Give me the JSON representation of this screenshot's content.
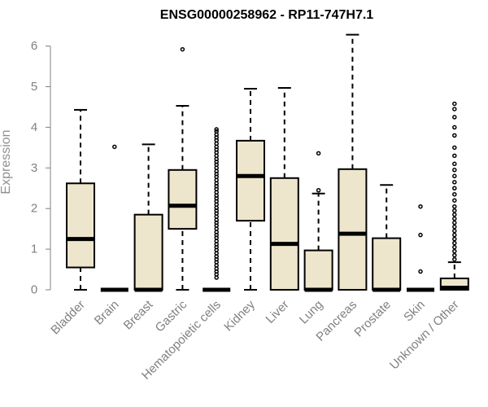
{
  "chart_data": {
    "type": "boxplot",
    "title": "ENSG00000258962 - RP11-747H7.1",
    "xlabel": "",
    "ylabel": "Expression",
    "ylim": [
      0,
      6.3
    ],
    "yticks": [
      0,
      1,
      2,
      3,
      4,
      5,
      6
    ],
    "grid": false,
    "box_fill": "#ede6cd",
    "categories": [
      "Bladder",
      "Brain",
      "Breast",
      "Gastric",
      "Hematopoietic cells",
      "Kidney",
      "Liver",
      "Lung",
      "Pancreas",
      "Prostate",
      "Skin",
      "Unknown / Other"
    ],
    "boxes": [
      {
        "min": 0,
        "q1": 0.55,
        "median": 1.25,
        "q3": 2.62,
        "max": 4.43,
        "outliers": []
      },
      {
        "min": 0,
        "q1": 0,
        "median": 0,
        "q3": 0,
        "max": 0,
        "outliers": [
          3.52
        ]
      },
      {
        "min": 0,
        "q1": 0,
        "median": 0,
        "q3": 1.85,
        "max": 3.58,
        "outliers": []
      },
      {
        "min": 0,
        "q1": 1.5,
        "median": 2.07,
        "q3": 2.95,
        "max": 4.53,
        "outliers": [
          5.92
        ]
      },
      {
        "min": 0,
        "q1": 0,
        "median": 0,
        "q3": 0,
        "max": 0,
        "outliers": [
          0.3,
          0.38,
          0.45,
          0.52,
          0.6,
          0.68,
          0.75,
          0.82,
          0.9,
          0.98,
          1.05,
          1.12,
          1.2,
          1.28,
          1.35,
          1.42,
          1.5,
          1.58,
          1.65,
          1.72,
          1.8,
          1.88,
          1.95,
          2.02,
          2.1,
          2.18,
          2.25,
          2.32,
          2.4,
          2.48,
          2.55,
          2.62,
          2.7,
          2.78,
          2.85,
          2.92,
          3.0,
          3.08,
          3.15,
          3.22,
          3.3,
          3.38,
          3.45,
          3.52,
          3.6,
          3.68,
          3.75,
          3.82,
          3.9,
          3.95
        ]
      },
      {
        "min": 0,
        "q1": 1.7,
        "median": 2.8,
        "q3": 3.67,
        "max": 4.95,
        "outliers": []
      },
      {
        "min": 0,
        "q1": 0,
        "median": 1.13,
        "q3": 2.75,
        "max": 4.97,
        "outliers": []
      },
      {
        "min": 0,
        "q1": 0,
        "median": 0,
        "q3": 0.97,
        "max": 2.37,
        "outliers": [
          2.45,
          3.36
        ]
      },
      {
        "min": 0,
        "q1": 0,
        "median": 1.38,
        "q3": 2.97,
        "max": 6.28,
        "outliers": []
      },
      {
        "min": 0,
        "q1": 0,
        "median": 0,
        "q3": 1.27,
        "max": 2.58,
        "outliers": []
      },
      {
        "min": 0,
        "q1": 0,
        "median": 0,
        "q3": 0,
        "max": 0,
        "outliers": [
          0.45,
          1.35,
          2.05
        ]
      },
      {
        "min": 0,
        "q1": 0,
        "median": 0.05,
        "q3": 0.28,
        "max": 0.68,
        "outliers": [
          0.75,
          0.85,
          0.95,
          1.05,
          1.15,
          1.25,
          1.35,
          1.45,
          1.55,
          1.65,
          1.75,
          1.85,
          1.95,
          2.05,
          2.2,
          2.35,
          2.5,
          2.65,
          2.8,
          2.95,
          3.1,
          3.3,
          3.5,
          3.8,
          4.0,
          4.25,
          4.45,
          4.58
        ]
      }
    ]
  }
}
